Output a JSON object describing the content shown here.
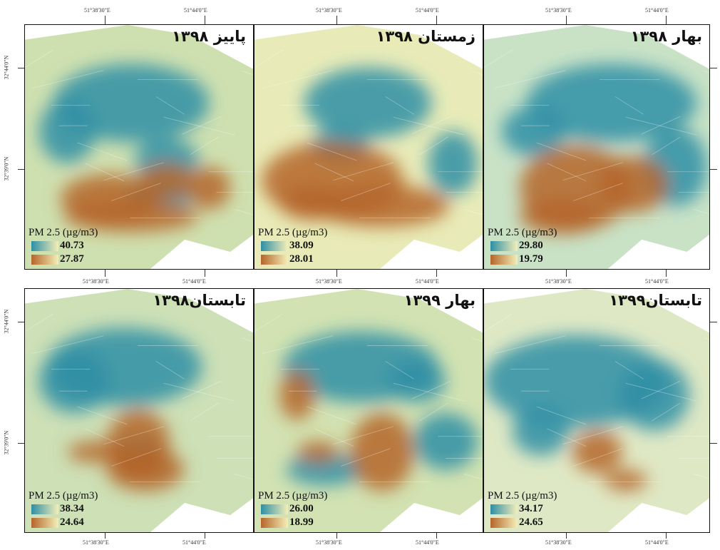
{
  "colors": {
    "high": "#2e8fa6",
    "mid": "#f4efb8",
    "low": "#b5662a",
    "background": "#ffffff",
    "frame": "#111111"
  },
  "axis_labels": {
    "lon_left": "51°38'30\"E",
    "lon_right": "51°44'0\"E",
    "lat_upper": "32°44'0\"N",
    "lat_lower": "32°39'0\"N"
  },
  "panels": [
    {
      "id": "fall-1398",
      "title": "پاییز ۱۳۹۸",
      "legend_title": "PM 2.5 (µg/m3)",
      "legend_high": "40.73",
      "legend_low": "27.87"
    },
    {
      "id": "winter-1398",
      "title": "زمستان ۱۳۹۸",
      "legend_title": "PM 2.5 (µg/m3)",
      "legend_high": "38.09",
      "legend_low": "28.01"
    },
    {
      "id": "spring-1398",
      "title": "بهار ۱۳۹۸",
      "legend_title": "PM 2.5 (µg/m3)",
      "legend_high": "29.80",
      "legend_low": "19.79"
    },
    {
      "id": "summer-1398",
      "title": "تابستان۱۳۹۸",
      "legend_title": "PM 2.5 (µg/m3)",
      "legend_high": "38.34",
      "legend_low": "24.64"
    },
    {
      "id": "spring-1399",
      "title": "بهار ۱۳۹۹",
      "legend_title": "PM 2.5 (µg/m3)",
      "legend_high": "26.00",
      "legend_low": "18.99"
    },
    {
      "id": "summer-1399",
      "title": "تابستان۱۳۹۹",
      "legend_title": "PM 2.5 (µg/m3)",
      "legend_high": "34.17",
      "legend_low": "24.65"
    }
  ]
}
